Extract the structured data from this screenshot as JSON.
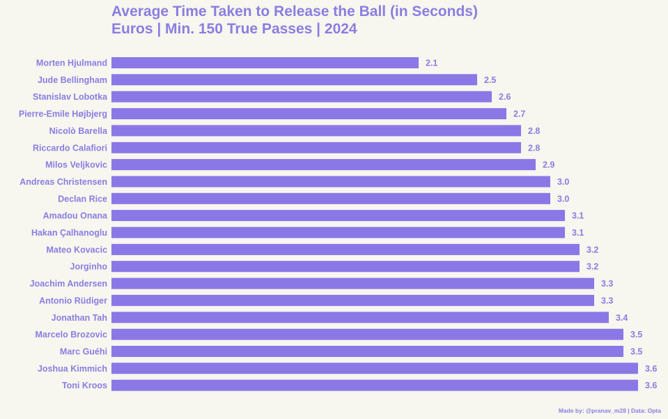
{
  "chart_data": {
    "type": "bar",
    "orientation": "horizontal",
    "title": "Average Time Taken to Release the Ball (in Seconds)",
    "subtitle": "Euros | Min. 150 True Passes | 2024",
    "categories": [
      "Morten Hjulmand",
      "Jude Bellingham",
      "Stanislav Lobotka",
      "Pierre-Emile Højbjerg",
      "Nicolò Barella",
      "Riccardo Calafiori",
      "Milos Veljkovic",
      "Andreas Christensen",
      "Declan Rice",
      "Amadou Onana",
      "Hakan Çalhanoglu",
      "Mateo Kovacic",
      "Jorginho",
      "Joachim Andersen",
      "Antonio Rüdiger",
      "Jonathan Tah",
      "Marcelo Brozovic",
      "Marc Guéhi",
      "Joshua Kimmich",
      "Toni Kroos"
    ],
    "values": [
      2.1,
      2.5,
      2.6,
      2.7,
      2.8,
      2.8,
      2.9,
      3.0,
      3.0,
      3.1,
      3.1,
      3.2,
      3.2,
      3.3,
      3.3,
      3.4,
      3.5,
      3.5,
      3.6,
      3.6
    ],
    "value_labels": [
      "2.1",
      "2.5",
      "2.6",
      "2.7",
      "2.8",
      "2.8",
      "2.9",
      "3.0",
      "3.0",
      "3.1",
      "3.1",
      "3.2",
      "3.2",
      "3.3",
      "3.3",
      "3.4",
      "3.5",
      "3.5",
      "3.6",
      "3.6"
    ],
    "xlim": [
      0,
      3.6
    ],
    "grid": false,
    "legend": "none",
    "bar_color": "#8a78e6",
    "text_color": "#8a7ee0"
  },
  "footer": {
    "credit": "Made by: @pranav_m28 | Data: Opta"
  }
}
